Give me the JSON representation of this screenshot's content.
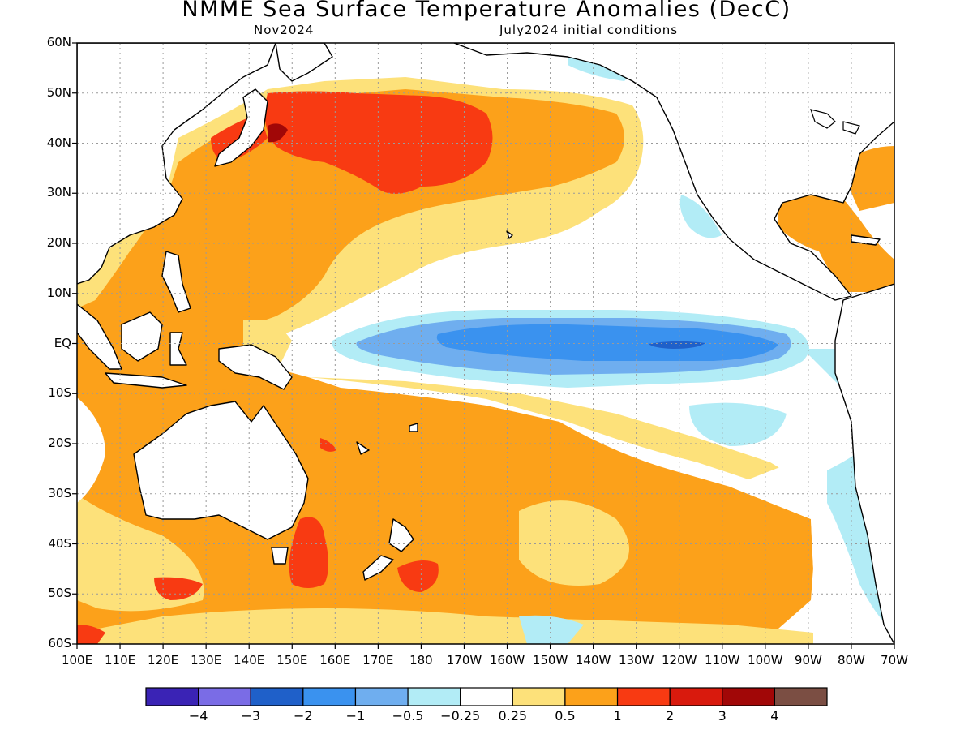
{
  "title": "NMME Sea Surface Temperature Anomalies (DecC)",
  "subtitle_left": "Nov2024",
  "subtitle_right": "July2024 initial conditions",
  "lat_labels": [
    "60N",
    "50N",
    "40N",
    "30N",
    "20N",
    "10N",
    "EQ",
    "10S",
    "20S",
    "30S",
    "40S",
    "50S",
    "60S"
  ],
  "lon_labels": [
    "100E",
    "110E",
    "120E",
    "130E",
    "140E",
    "150E",
    "160E",
    "170E",
    "180",
    "170W",
    "160W",
    "150W",
    "140W",
    "130W",
    "120W",
    "110W",
    "100W",
    "90W",
    "80W",
    "70W"
  ],
  "colorbar": {
    "colors": [
      "#3a23b5",
      "#7a6ce6",
      "#1f60c9",
      "#3a92ef",
      "#6faeef",
      "#b2ecf6",
      "#ffffff",
      "#fde17a",
      "#fca11a",
      "#f83a12",
      "#d91a0d",
      "#a10707",
      "#7b4e43"
    ],
    "labels": [
      "−4",
      "−3",
      "−2",
      "−1",
      "−0.5",
      "−0.25",
      "0.25",
      "0.5",
      "1",
      "2",
      "3",
      "4"
    ]
  },
  "colors": {
    "land": "#ffffff",
    "coast": "#000000",
    "grid": "#9a9a9a"
  }
}
